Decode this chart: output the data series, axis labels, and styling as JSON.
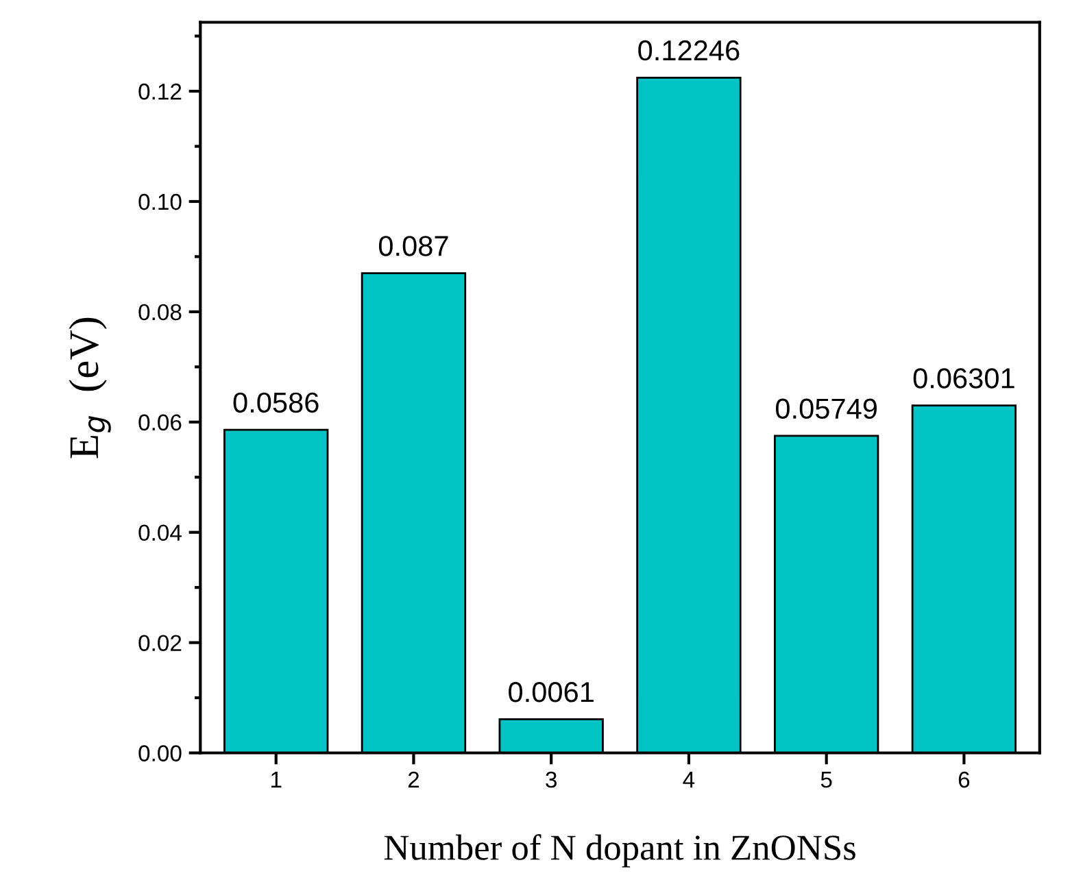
{
  "chart_data": {
    "type": "bar",
    "xlabel": "Number of N dopant in ZnONSs",
    "ylabel": "E$_{g}$  (eV)",
    "categories": [
      "1",
      "2",
      "3",
      "4",
      "5",
      "6"
    ],
    "values": [
      0.0586,
      0.087,
      0.0061,
      0.12246,
      0.05749,
      0.06301
    ],
    "color": "#00c4c4",
    "data_labels": true,
    "ylim": [
      0,
      0.1325
    ],
    "yticks": [
      {
        "value": 0.0,
        "label": "0.00"
      },
      {
        "value": 0.02,
        "label": "0.02"
      },
      {
        "value": 0.04,
        "label": "0.04"
      },
      {
        "value": 0.06,
        "label": "0.06"
      },
      {
        "value": 0.08,
        "label": "0.08"
      },
      {
        "value": 0.1,
        "label": "0.10"
      },
      {
        "value": 0.12,
        "label": "0.12"
      }
    ],
    "grid": false,
    "legend": false
  }
}
